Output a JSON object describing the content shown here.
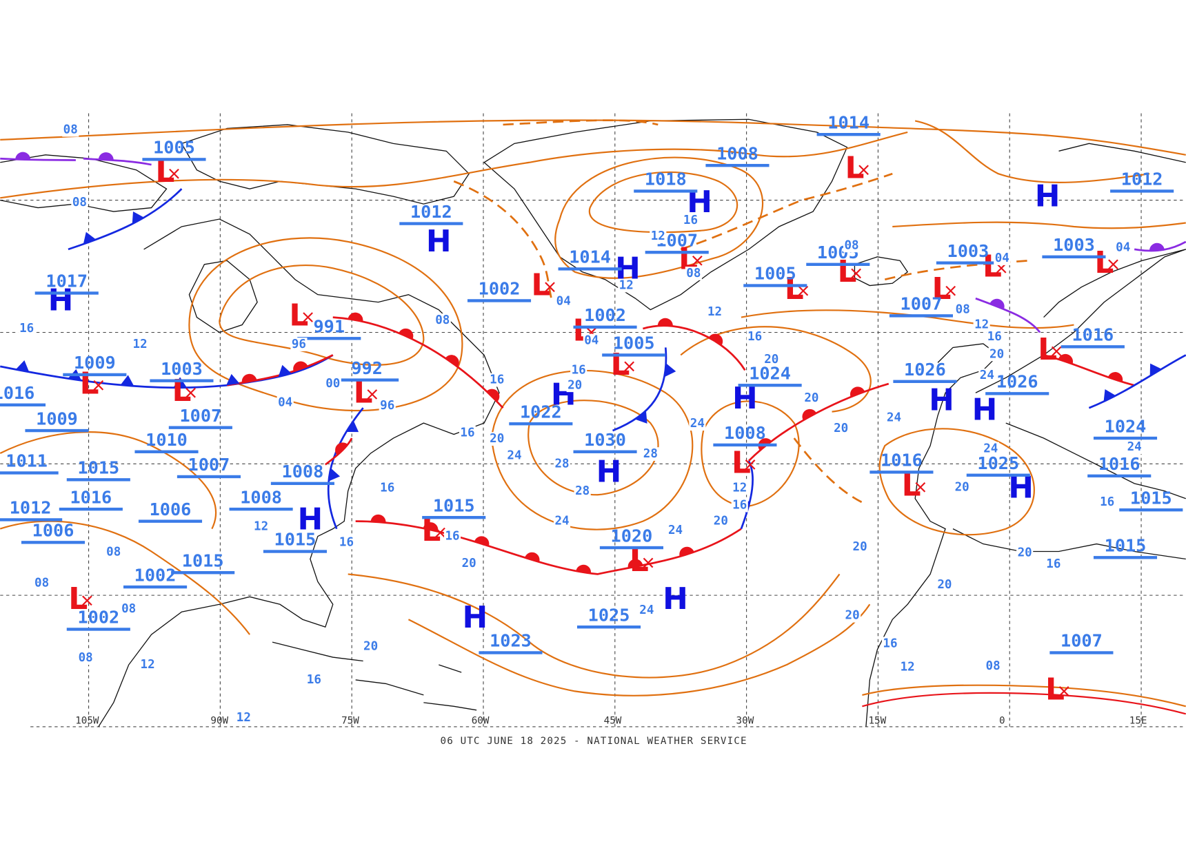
{
  "caption": "06 UTC JUNE 18 2025 - NATIONAL WEATHER SERVICE",
  "longitude_labels": [
    "105W",
    "90W",
    "75W",
    "60W",
    "45W",
    "30W",
    "15W",
    "0",
    "15E"
  ],
  "pressure_centers": [
    {
      "symbol": "L",
      "pressure": "1005"
    },
    {
      "symbol": "H",
      "pressure": "1012"
    },
    {
      "symbol": "L",
      "pressure": "991"
    },
    {
      "symbol": "L",
      "pressure": "992"
    },
    {
      "symbol": "L",
      "pressure": "1003"
    },
    {
      "symbol": "L",
      "pressure": "1009"
    },
    {
      "symbol": "H",
      "pressure": "1017"
    },
    {
      "symbol": "L",
      "pressure": "1002"
    },
    {
      "symbol": "H",
      "pressure": "1014"
    },
    {
      "symbol": "L",
      "pressure": "1002"
    },
    {
      "symbol": "L",
      "pressure": "1005"
    },
    {
      "symbol": "H",
      "pressure": "1018"
    },
    {
      "symbol": "L",
      "pressure": "1007"
    },
    {
      "symbol": "H",
      "pressure": "1008"
    },
    {
      "symbol": "L",
      "pressure": "1014"
    },
    {
      "symbol": "L",
      "pressure": "1005"
    },
    {
      "symbol": "L",
      "pressure": "1005"
    },
    {
      "symbol": "H",
      "pressure": "1024"
    },
    {
      "symbol": "H",
      "pressure": "1022"
    },
    {
      "symbol": "H",
      "pressure": "1030"
    },
    {
      "symbol": "L",
      "pressure": "1008"
    },
    {
      "symbol": "L",
      "pressure": "1020"
    },
    {
      "symbol": "L",
      "pressure": "1015"
    },
    {
      "symbol": "H",
      "pressure": "1023"
    },
    {
      "symbol": "H",
      "pressure": "1025"
    },
    {
      "symbol": "L",
      "pressure": "1003"
    },
    {
      "symbol": "L",
      "pressure": "1007"
    },
    {
      "symbol": "H",
      "pressure": "1026"
    },
    {
      "symbol": "H",
      "pressure": "1026"
    },
    {
      "symbol": "L",
      "pressure": "1016"
    },
    {
      "symbol": "H",
      "pressure": "1025"
    },
    {
      "symbol": "L",
      "pressure": "1003"
    },
    {
      "symbol": "L",
      "pressure": "1016"
    },
    {
      "symbol": "H",
      "pressure": "1012"
    },
    {
      "symbol": "L",
      "pressure": "1007"
    },
    {
      "pressure": "1024"
    },
    {
      "pressure": "1016"
    },
    {
      "pressure": "1015"
    },
    {
      "pressure": "1015"
    },
    {
      "pressure": "1009"
    },
    {
      "pressure": "1010"
    },
    {
      "pressure": "1007"
    },
    {
      "pressure": "1007"
    },
    {
      "pressure": "1008"
    },
    {
      "symbol": "H",
      "pressure": "1008"
    },
    {
      "pressure": "1015"
    },
    {
      "pressure": "1006"
    },
    {
      "pressure": "1016"
    },
    {
      "pressure": "1015"
    },
    {
      "pressure": "1015"
    },
    {
      "pressure": "1002"
    },
    {
      "symbol": "L",
      "pressure": "1002"
    },
    {
      "pressure": "1006"
    },
    {
      "pressure": "1012"
    },
    {
      "pressure": "1011"
    },
    {
      "pressure": "1016"
    }
  ],
  "isobar_labels": [
    "08",
    "08",
    "16",
    "12",
    "04",
    "00",
    "96",
    "96",
    "08",
    "16",
    "20",
    "24",
    "28",
    "28",
    "28",
    "24",
    "24",
    "24",
    "16",
    "20",
    "04",
    "12",
    "04",
    "16",
    "12",
    "08",
    "12",
    "16",
    "20",
    "20",
    "24",
    "20",
    "24",
    "12",
    "16",
    "20",
    "20",
    "20",
    "16",
    "12",
    "08",
    "04",
    "08",
    "12",
    "16",
    "20",
    "24",
    "24",
    "20",
    "20",
    "20",
    "16",
    "16",
    "24",
    "04",
    "08",
    "20",
    "16",
    "12",
    "12",
    "16",
    "16",
    "16",
    "16",
    "20",
    "08",
    "08",
    "08",
    "08",
    "12"
  ]
}
